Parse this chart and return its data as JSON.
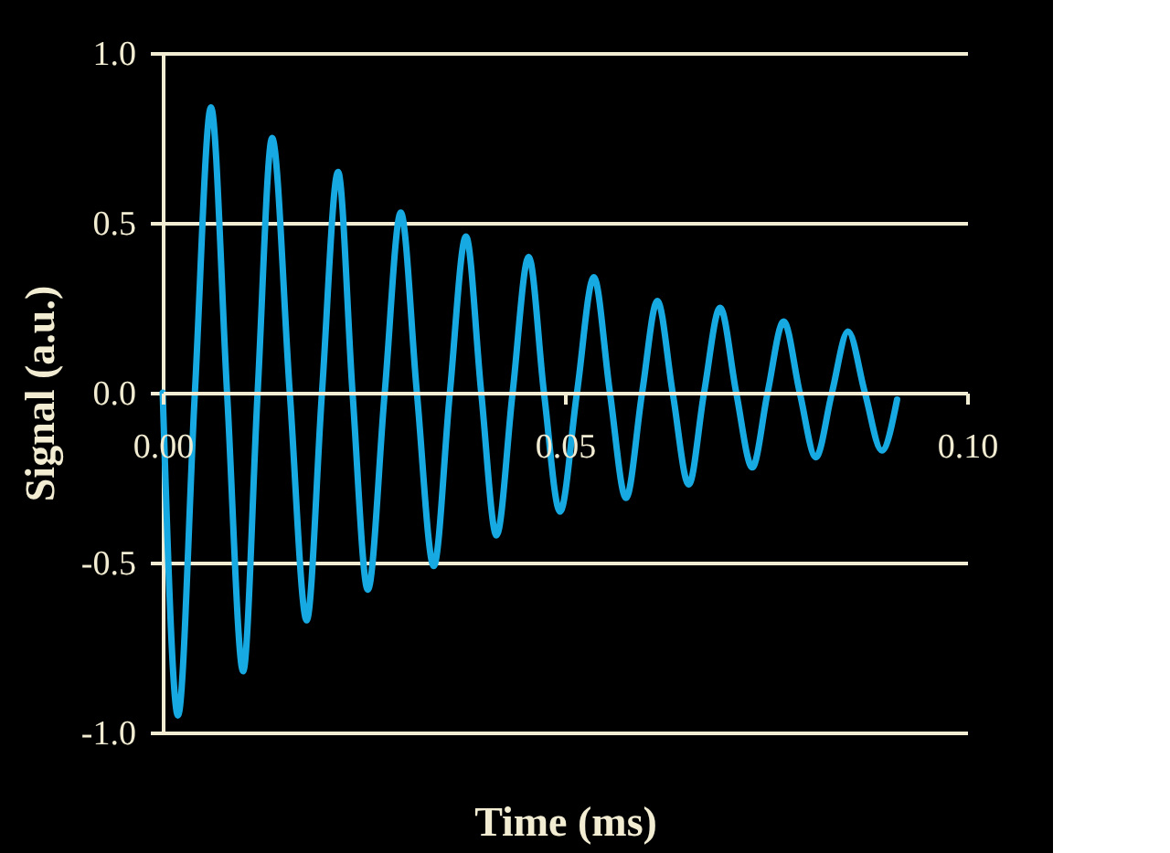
{
  "chart_data": {
    "type": "line",
    "xlabel": "Time (ms)",
    "ylabel": "Signal (a.u.)",
    "x": [
      0,
      0.0019,
      0.004,
      0.006,
      0.008,
      0.01,
      0.0118,
      0.0136,
      0.0158,
      0.0179,
      0.0198,
      0.0218,
      0.0236,
      0.0255,
      0.0276,
      0.0296,
      0.0316,
      0.0337,
      0.0357,
      0.0377,
      0.0396,
      0.0415,
      0.0435,
      0.0455,
      0.0474,
      0.0494,
      0.0515,
      0.0536,
      0.0556,
      0.0576,
      0.0596,
      0.0615,
      0.0634,
      0.0654,
      0.0673,
      0.0693,
      0.0713,
      0.0733,
      0.0752,
      0.0772,
      0.0792,
      0.0812,
      0.0832,
      0.0852,
      0.0873,
      0.0894,
      0.0913
    ],
    "series": [
      {
        "color": "#17a9e1",
        "values": [
          0,
          -0.95,
          0,
          0.84,
          0,
          -0.82,
          0,
          0.75,
          0,
          -0.67,
          0,
          0.65,
          0,
          -0.58,
          0,
          0.53,
          0,
          -0.51,
          0,
          0.46,
          0,
          -0.42,
          0,
          0.4,
          0,
          -0.35,
          0,
          0.34,
          0,
          -0.31,
          0,
          0.27,
          0,
          -0.27,
          0,
          0.25,
          0,
          -0.22,
          0,
          0.21,
          0,
          -0.19,
          0,
          0.18,
          0,
          -0.17,
          -0.02
        ]
      }
    ],
    "xlim": [
      0,
      0.1
    ],
    "ylim": [
      -1.0,
      1.0
    ],
    "xticks": [
      {
        "value": 0,
        "label": "0.00"
      },
      0.05,
      {
        "value": 0.1,
        "label": "0.10"
      }
    ],
    "yticks": [
      {
        "value": -1.0,
        "label": "-1.0"
      },
      -0.5,
      {
        "value": 0,
        "label": "0.0"
      },
      0.5,
      {
        "value": 1.0,
        "label": "1.0"
      }
    ],
    "grid": "y",
    "marker": "none",
    "line_style": "solid"
  }
}
